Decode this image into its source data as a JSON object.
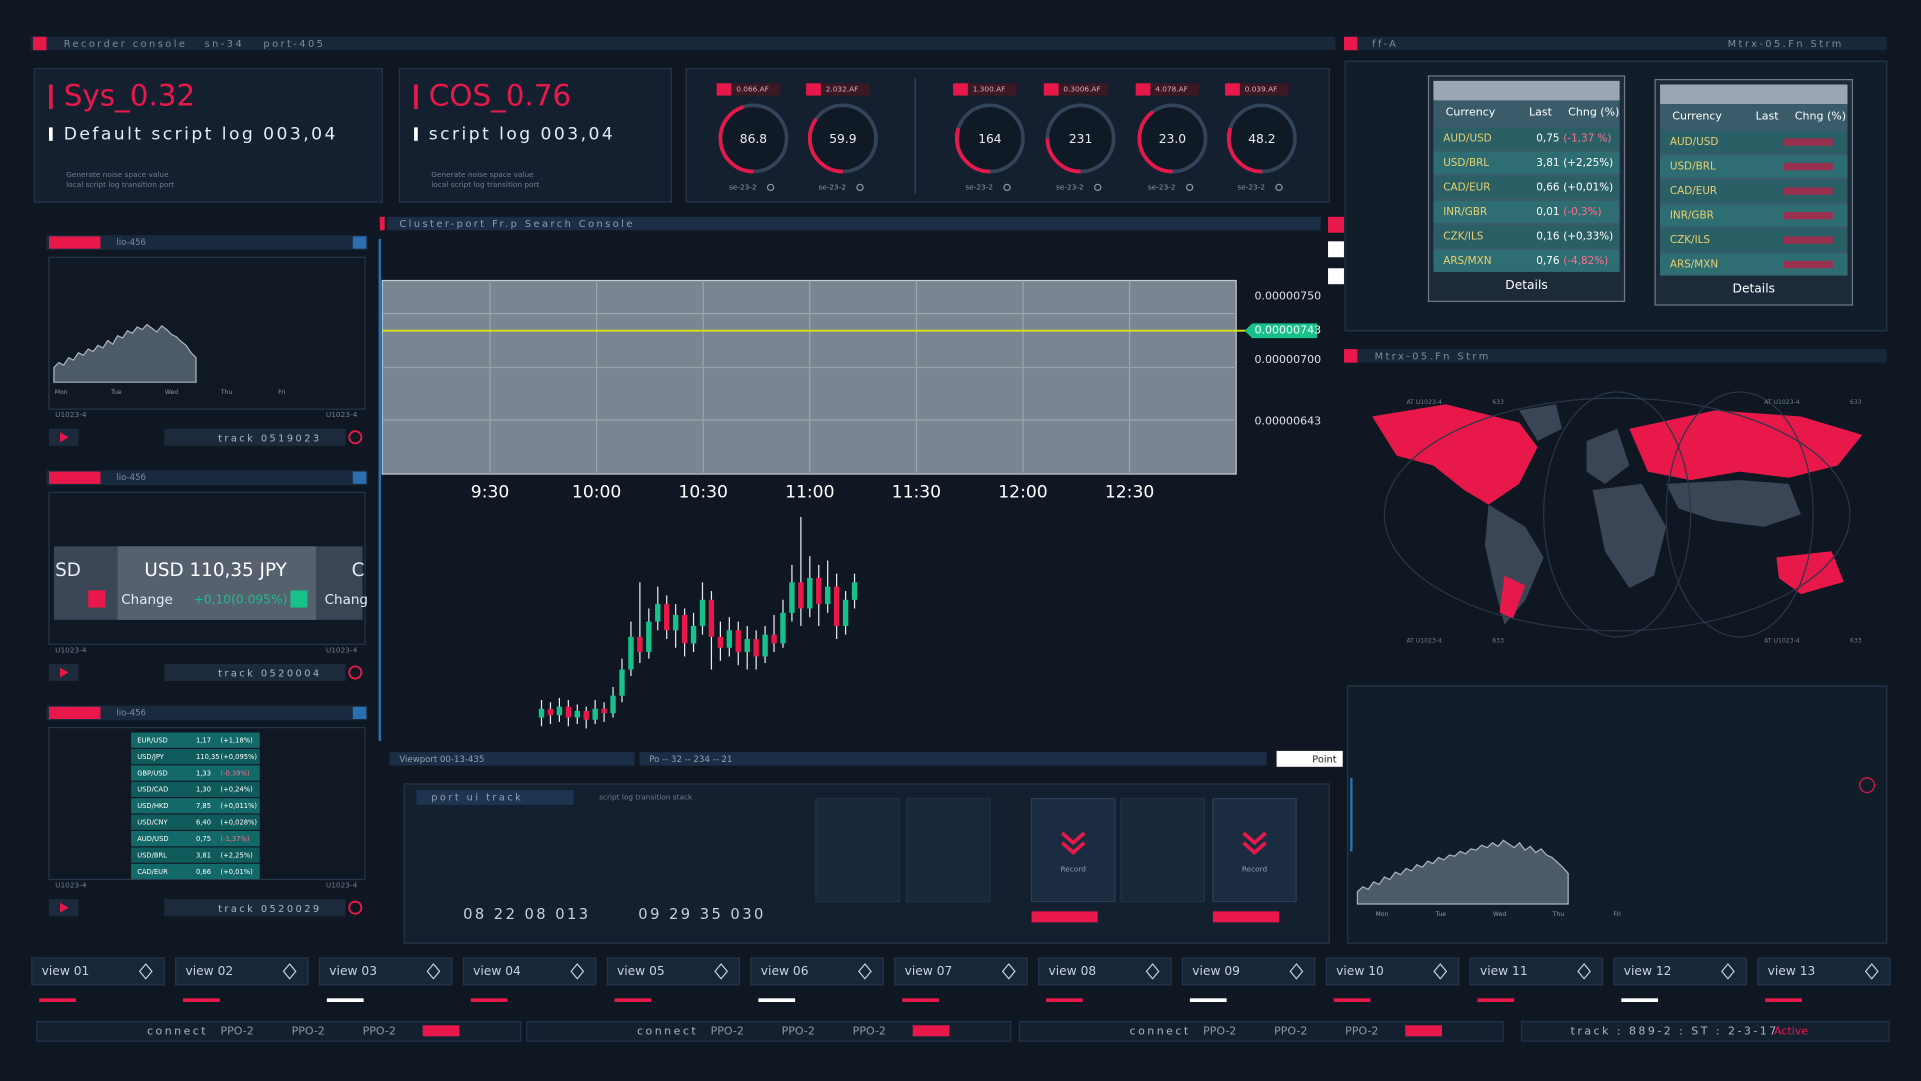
{
  "header": {
    "left": [
      "Recorder console",
      "sn-34",
      "port-405"
    ],
    "right_id": "ff-A",
    "right_title": "Mtrx-05.Fn Strm"
  },
  "cards": [
    {
      "title": "Sys_0.32",
      "log": "Default script log 003,04",
      "notes": [
        "Generate noise space value",
        "local script log transition port"
      ]
    },
    {
      "title": "COS_0.76",
      "log": "script log 003,04",
      "notes": [
        "Generate noise space value",
        "local script log transition port"
      ]
    }
  ],
  "gauges": [
    {
      "tag": "0.066.AF",
      "reading": "86.8",
      "footer": "se-23-2"
    },
    {
      "tag": "2.032.AF",
      "reading": "59.9",
      "footer": "se-23-2"
    },
    {
      "tag": "1.300.AF",
      "reading": "164",
      "footer": "se-23-2"
    },
    {
      "tag": "0.3006.AF",
      "reading": "231",
      "footer": "se-23-2"
    },
    {
      "tag": "4.078.AF",
      "reading": "23.0",
      "footer": "se-23-2"
    },
    {
      "tag": "0.039.AF",
      "reading": "48.2",
      "footer": "se-23-2"
    }
  ],
  "cams": [
    {
      "id": "lio-456",
      "track": "track 0519023",
      "footer": "U1023-4"
    },
    {
      "id": "lio-456",
      "track": "track 0520004",
      "footer": "U1023-4"
    },
    {
      "id": "lio-456",
      "track": "track 0520029",
      "footer": "U1023-4"
    }
  ],
  "cam_chart": {
    "values": [
      12,
      16,
      14,
      20,
      18,
      24,
      22,
      27,
      25,
      30,
      28,
      34,
      31,
      38,
      36,
      42,
      40,
      45,
      43,
      47,
      44,
      41,
      46,
      43,
      39,
      37,
      33,
      30,
      24,
      20
    ],
    "x_labels": [
      "Mon",
      "Tue",
      "Wed",
      "Thu",
      "Fri"
    ]
  },
  "ticker": {
    "left": "SD",
    "pair": "USD 110,35 JPY",
    "change_label": "Change",
    "change": "+0,10(0.095%)",
    "right": "C",
    "right_change": "Chang"
  },
  "mini_table": [
    [
      "EUR/USD",
      "1,17",
      "(+1,18%)"
    ],
    [
      "USD/JPY",
      "110,35",
      "(+0,095%)"
    ],
    [
      "GBP/USD",
      "1,33",
      "(-0,39%)"
    ],
    [
      "USD/CAD",
      "1,30",
      "(+0,24%)"
    ],
    [
      "USD/HKD",
      "7,85",
      "(+0,011%)"
    ],
    [
      "USD/CNY",
      "6,40",
      "(+0,028%)"
    ],
    [
      "AUD/USD",
      "0,75",
      "(-1,37%)"
    ],
    [
      "USD/BRL",
      "3,81",
      "(+2,25%)"
    ],
    [
      "CAD/EUR",
      "0,66",
      "(+0,01%)"
    ]
  ],
  "console": {
    "title": "Cluster-port Fr.p Search Console",
    "price_labels": [
      "0.00000750",
      "0.00000700",
      "0.00000643"
    ],
    "current": "0.00000743",
    "times": [
      "9:30",
      "10:00",
      "10:30",
      "11:00",
      "11:30",
      "12:00",
      "12:30"
    ],
    "candles": [
      [
        8,
        12,
        16,
        4
      ],
      [
        12,
        9,
        15,
        5
      ],
      [
        9,
        13,
        17,
        6
      ],
      [
        13,
        8,
        16,
        4
      ],
      [
        8,
        11,
        14,
        5
      ],
      [
        11,
        7,
        13,
        3
      ],
      [
        7,
        12,
        16,
        5
      ],
      [
        12,
        10,
        15,
        6
      ],
      [
        10,
        18,
        22,
        8
      ],
      [
        18,
        30,
        35,
        15
      ],
      [
        30,
        45,
        52,
        27
      ],
      [
        45,
        38,
        70,
        33
      ],
      [
        38,
        52,
        58,
        35
      ],
      [
        52,
        60,
        68,
        48
      ],
      [
        60,
        48,
        64,
        44
      ],
      [
        48,
        55,
        60,
        40
      ],
      [
        55,
        42,
        58,
        36
      ],
      [
        42,
        50,
        56,
        38
      ],
      [
        50,
        62,
        70,
        46
      ],
      [
        62,
        45,
        66,
        30
      ],
      [
        45,
        40,
        52,
        34
      ],
      [
        40,
        48,
        54,
        36
      ],
      [
        48,
        38,
        52,
        32
      ],
      [
        38,
        44,
        50,
        30
      ],
      [
        44,
        36,
        48,
        30
      ],
      [
        36,
        46,
        50,
        33
      ],
      [
        46,
        42,
        55,
        38
      ],
      [
        42,
        56,
        62,
        40
      ],
      [
        56,
        70,
        78,
        52
      ],
      [
        70,
        58,
        100,
        50
      ],
      [
        58,
        72,
        82,
        54
      ],
      [
        72,
        60,
        78,
        50
      ],
      [
        60,
        68,
        80,
        56
      ],
      [
        68,
        50,
        74,
        44
      ],
      [
        50,
        62,
        66,
        46
      ],
      [
        62,
        70,
        74,
        58
      ]
    ],
    "viewport": "Viewport 00-13-435",
    "position": "Po -- 32 -- 234 -- 21",
    "point": "Point"
  },
  "track_panel": {
    "tab": "port ui track",
    "caption": "script log transition stack",
    "clock_1": "08 22 08 013",
    "clock_2": "09 29 35 030",
    "buttons": [
      "Record",
      "Record"
    ]
  },
  "rates": {
    "columns": [
      "Currency",
      "Last",
      "Chng (%)"
    ],
    "rows": [
      [
        "AUD/USD",
        "0,75",
        "(-1,37 %)"
      ],
      [
        "USD/BRL",
        "3,81",
        "(+2,25%)"
      ],
      [
        "CAD/EUR",
        "0,66",
        "(+0,01%)"
      ],
      [
        "INR/GBR",
        "0,01",
        "(-0,3%)"
      ],
      [
        "CZK/ILS",
        "0,16",
        "(+0,33%)"
      ],
      [
        "ARS/MXN",
        "0,76",
        "(-4,82%)"
      ]
    ],
    "action": "Details"
  },
  "rates_2": {
    "columns": [
      "Currency",
      "Last",
      "Chng (%)"
    ],
    "pairs": [
      "AUD/USD",
      "USD/BRL",
      "CAD/EUR",
      "INR/GBR",
      "CZK/ILS",
      "ARS/MXN"
    ],
    "action": "Details"
  },
  "map": {
    "corner": "AT U1023-4",
    "code": "633"
  },
  "volume_chart": {
    "values": [
      10,
      14,
      12,
      18,
      16,
      22,
      20,
      26,
      24,
      29,
      27,
      32,
      30,
      35,
      33,
      38,
      36,
      40,
      39,
      43,
      41,
      45,
      44,
      48,
      46,
      50,
      47,
      52,
      49,
      46,
      50,
      44,
      47,
      42,
      45,
      40,
      38,
      34,
      30,
      25
    ],
    "x_labels": [
      "Mon",
      "Tue",
      "Wed",
      "Thu",
      "Fri"
    ]
  },
  "views": [
    "view 01",
    "view 02",
    "view 03",
    "view 04",
    "view 05",
    "view 06",
    "view 07",
    "view 08",
    "view 09",
    "view 10",
    "view 11",
    "view 12",
    "view 13"
  ],
  "status": {
    "connect": "connect",
    "channel": "PPO-2",
    "track": "track : 889-2 : ST : 2-3-17",
    "state": "Active"
  }
}
